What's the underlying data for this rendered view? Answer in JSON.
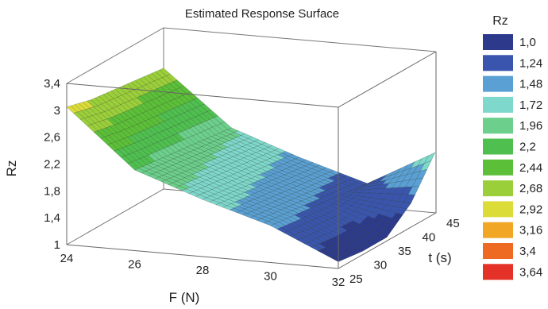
{
  "chart_data": {
    "type": "surface3d",
    "title": "Estimated Response Surface",
    "xlabel": "F (N)",
    "ylabel": "t (s)",
    "zlabel": "Rz",
    "x_ticks": [
      "24",
      "26",
      "28",
      "30",
      "32"
    ],
    "y_ticks": [
      "25",
      "30",
      "35",
      "40",
      "45"
    ],
    "z_ticks": [
      "1",
      "1,4",
      "1,8",
      "2,2",
      "2,6",
      "3",
      "3,4"
    ],
    "xlim": [
      24,
      32
    ],
    "ylim": [
      25,
      45
    ],
    "zlim": [
      1,
      3.4
    ],
    "grid": false,
    "legend": {
      "title": "Rz",
      "placement": "right",
      "entries": [
        {
          "label": "1,0",
          "color": "#2d3a8c"
        },
        {
          "label": "1,24",
          "color": "#3a55ad"
        },
        {
          "label": "1,48",
          "color": "#5aa0d4"
        },
        {
          "label": "1,72",
          "color": "#7fd8cc"
        },
        {
          "label": "1,96",
          "color": "#6ccf8c"
        },
        {
          "label": "2,2",
          "color": "#4fbf4f"
        },
        {
          "label": "2,44",
          "color": "#5cbf38"
        },
        {
          "label": "2,68",
          "color": "#9bcf3a"
        },
        {
          "label": "2,92",
          "color": "#dcdc38"
        },
        {
          "label": "3,16",
          "color": "#f2a626"
        },
        {
          "label": "3,4",
          "color": "#ee6a22"
        },
        {
          "label": "3,64",
          "color": "#e43228"
        }
      ]
    },
    "surface": {
      "x": [
        24,
        26,
        28,
        30,
        32
      ],
      "y": [
        25,
        30,
        35,
        40,
        45
      ],
      "z": [
        [
          3.05,
          2.95,
          2.9,
          2.85,
          2.8
        ],
        [
          2.2,
          2.15,
          2.1,
          2.05,
          2.0
        ],
        [
          1.85,
          1.8,
          1.75,
          1.7,
          1.65
        ],
        [
          1.55,
          1.5,
          1.45,
          1.4,
          1.35
        ],
        [
          1.1,
          1.05,
          1.05,
          1.35,
          1.9
        ]
      ]
    }
  }
}
